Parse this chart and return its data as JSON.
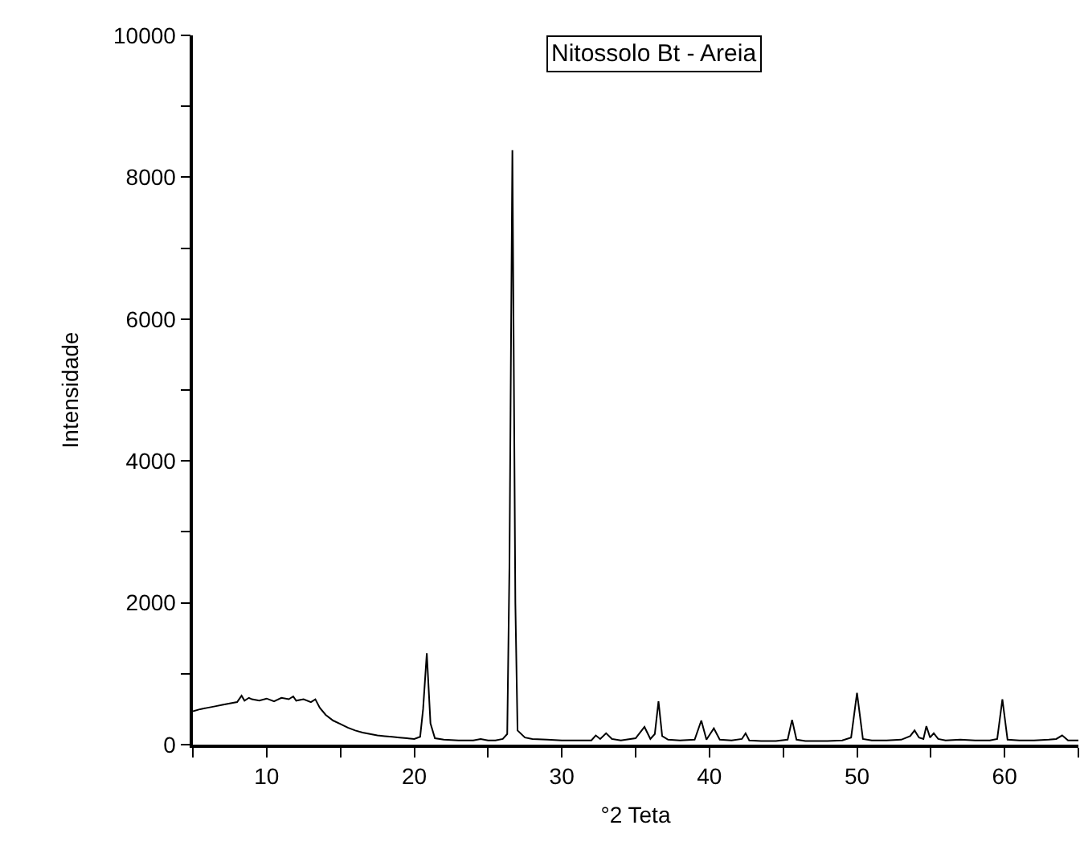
{
  "chart_data": {
    "type": "line",
    "xlabel": "°2 Teta",
    "ylabel": "Intensidade",
    "annotations": [
      "Nitossolo Bt - Areia"
    ],
    "series": [
      {
        "color": "#000000",
        "x": [
          5,
          5.5,
          6,
          6.5,
          7,
          7.5,
          8,
          8.3,
          8.5,
          8.8,
          9,
          9.5,
          10,
          10.5,
          11,
          11.5,
          11.8,
          12,
          12.5,
          13,
          13.3,
          13.6,
          14,
          14.5,
          15,
          15.5,
          16,
          16.5,
          17,
          17.5,
          18,
          18.5,
          19,
          19.5,
          20,
          20.4,
          20.6,
          20.85,
          21.1,
          21.4,
          22,
          23,
          24,
          24.5,
          25,
          25.5,
          26,
          26.3,
          26.45,
          26.65,
          26.85,
          27,
          27.5,
          28,
          29,
          30,
          31,
          32,
          32.3,
          32.6,
          33,
          33.4,
          34,
          35,
          35.6,
          36,
          36.3,
          36.55,
          36.8,
          37.2,
          38,
          39,
          39.45,
          39.8,
          40.3,
          40.7,
          41.5,
          42.2,
          42.45,
          42.7,
          43.5,
          44.5,
          45.3,
          45.6,
          45.9,
          46.5,
          48,
          49,
          49.6,
          50,
          50.4,
          51,
          52,
          53,
          53.6,
          53.9,
          54.2,
          54.5,
          54.7,
          54.95,
          55.2,
          55.5,
          56,
          57,
          58,
          59,
          59.5,
          59.85,
          60.2,
          61,
          62,
          63,
          63.5,
          63.9,
          64.3,
          65
        ],
        "values": [
          470,
          500,
          520,
          540,
          560,
          580,
          600,
          690,
          620,
          660,
          640,
          620,
          650,
          610,
          660,
          640,
          680,
          620,
          640,
          600,
          640,
          520,
          420,
          340,
          290,
          240,
          200,
          170,
          150,
          130,
          120,
          110,
          100,
          90,
          80,
          110,
          500,
          1290,
          300,
          90,
          70,
          60,
          60,
          80,
          60,
          60,
          80,
          150,
          2500,
          8380,
          2000,
          200,
          100,
          80,
          70,
          60,
          60,
          60,
          130,
          80,
          160,
          80,
          60,
          90,
          250,
          80,
          150,
          610,
          120,
          70,
          60,
          70,
          340,
          70,
          230,
          70,
          60,
          80,
          160,
          60,
          50,
          50,
          70,
          350,
          70,
          50,
          50,
          60,
          100,
          730,
          80,
          60,
          60,
          70,
          120,
          200,
          100,
          80,
          260,
          100,
          160,
          80,
          60,
          70,
          60,
          60,
          80,
          640,
          70,
          60,
          60,
          70,
          80,
          130,
          60,
          60
        ]
      }
    ],
    "xlim": [
      5,
      65
    ],
    "xticks": [
      {
        "value": 5,
        "label": null
      },
      10,
      {
        "value": 15,
        "label": null
      },
      20,
      {
        "value": 25,
        "label": null
      },
      30,
      {
        "value": 35,
        "label": null
      },
      40,
      {
        "value": 45,
        "label": null
      },
      50,
      {
        "value": 55,
        "label": null
      },
      60,
      {
        "value": 65,
        "label": null
      }
    ],
    "ylim": [
      0,
      10000
    ],
    "yticks": [
      0,
      {
        "value": 1000,
        "label": null
      },
      2000,
      {
        "value": 3000,
        "label": null
      },
      4000,
      {
        "value": 5000,
        "label": null
      },
      6000,
      {
        "value": 7000,
        "label": null
      },
      8000,
      {
        "value": 9000,
        "label": null
      },
      10000
    ],
    "grid": false,
    "marker": "none",
    "line_style": "solid"
  }
}
